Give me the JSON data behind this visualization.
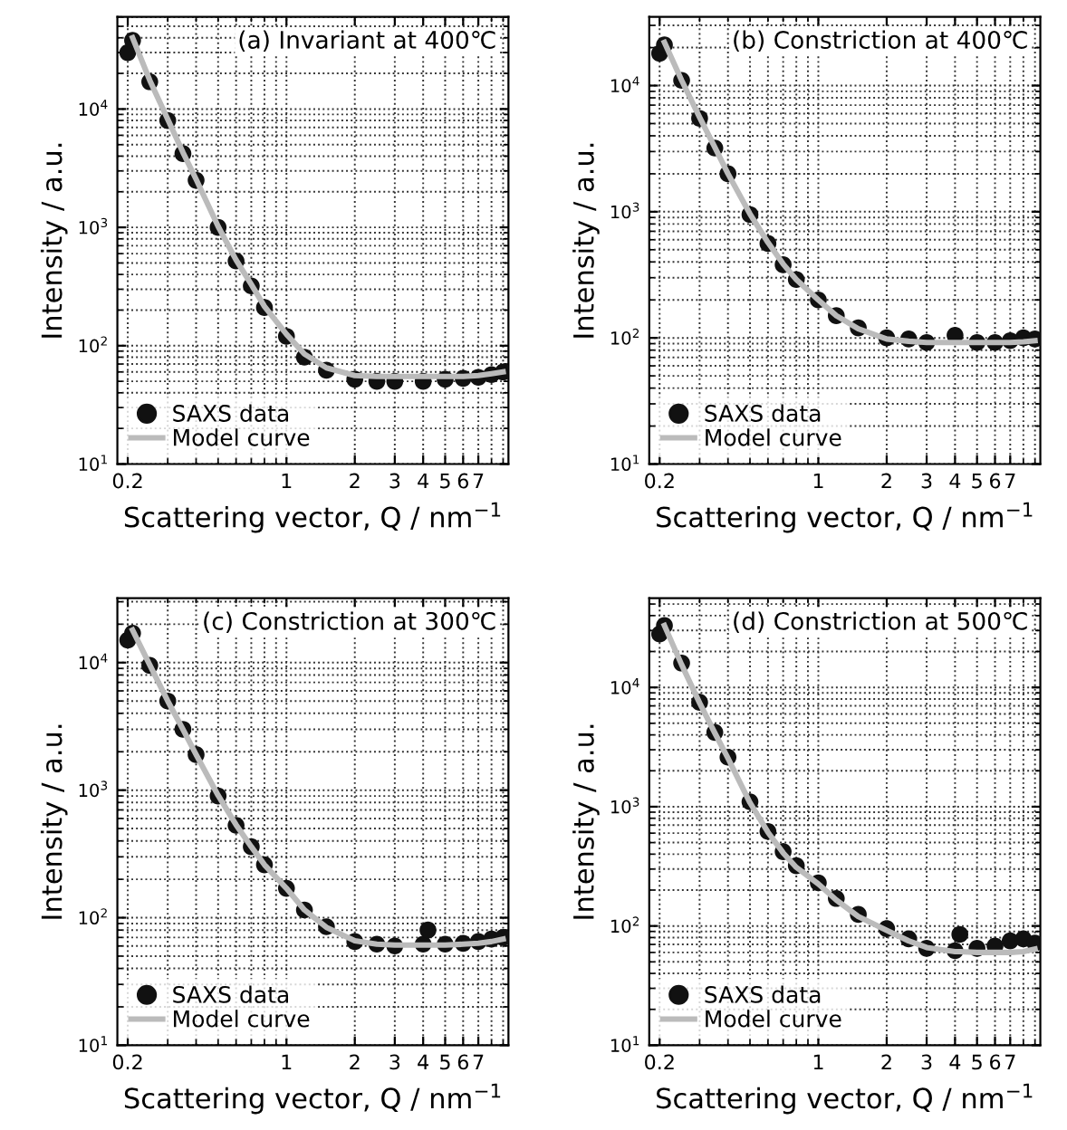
{
  "chart_data": [
    {
      "type": "scatter",
      "title": "(a) Invariant at 400℃",
      "xlabel": "Scattering vector, Q / nm$^{−1}$",
      "ylabel": "Intensity / a.u.",
      "log": "xy",
      "grid": true,
      "legend": "bottom left",
      "xlim": [
        0.18,
        9.5
      ],
      "ylim": [
        10,
        60000
      ],
      "xticks": [
        0.2,
        1,
        2,
        3,
        4,
        5,
        6,
        7
      ],
      "yticks": [
        {
          "value": 10,
          "label": "10$^{1}$"
        },
        {
          "value": 100,
          "label": "10$^{2}$"
        },
        {
          "value": 1000,
          "label": "10$^{3}$"
        },
        {
          "value": 10000,
          "label": "10$^{4}$"
        }
      ],
      "x": [
        0.2,
        0.21,
        0.25,
        0.3,
        0.35,
        0.4,
        0.5,
        0.6,
        0.7,
        0.8,
        1,
        1.2,
        1.5,
        2,
        2.5,
        3,
        4,
        5,
        6,
        7,
        8,
        9
      ],
      "series": [
        {
          "name": "SAXS data",
          "color": "#111111",
          "marker": "circle",
          "values": [
            30000,
            38000,
            17000,
            8000,
            4200,
            2500,
            1000,
            520,
            320,
            210,
            120,
            80,
            62,
            52,
            50,
            50,
            50,
            52,
            53,
            54,
            57,
            60
          ]
        },
        {
          "name": "Model curve",
          "type": "line",
          "color": "#bbbbbb",
          "line_style": "solid",
          "values": [
            null,
            40000,
            17500,
            8200,
            4300,
            2550,
            1020,
            530,
            330,
            215,
            125,
            85,
            65,
            56,
            55,
            55,
            55,
            55,
            55,
            56,
            58,
            60
          ]
        }
      ]
    },
    {
      "type": "scatter",
      "title": "(b) Constriction at 400℃",
      "xlabel": "Scattering vector, Q / nm$^{−1}$",
      "ylabel": "Intensity / a.u.",
      "log": "xy",
      "grid": true,
      "legend": "bottom left",
      "xlim": [
        0.18,
        9.5
      ],
      "ylim": [
        10,
        35000
      ],
      "xticks": [
        0.2,
        1,
        2,
        3,
        4,
        5,
        6,
        7
      ],
      "yticks": [
        {
          "value": 10,
          "label": "10$^{1}$"
        },
        {
          "value": 100,
          "label": "10$^{2}$"
        },
        {
          "value": 1000,
          "label": "10$^{3}$"
        },
        {
          "value": 10000,
          "label": "10$^{4}$"
        }
      ],
      "x": [
        0.2,
        0.21,
        0.25,
        0.3,
        0.35,
        0.4,
        0.5,
        0.6,
        0.7,
        0.8,
        1,
        1.2,
        1.5,
        2,
        2.5,
        3,
        4,
        5,
        6,
        7,
        8,
        9
      ],
      "series": [
        {
          "name": "SAXS data",
          "color": "#111111",
          "marker": "circle",
          "values": [
            18000,
            21000,
            11000,
            5500,
            3200,
            2000,
            950,
            560,
            380,
            290,
            200,
            150,
            120,
            100,
            98,
            92,
            105,
            92,
            92,
            95,
            100,
            98
          ]
        },
        {
          "name": "Model curve",
          "type": "line",
          "color": "#bbbbbb",
          "line_style": "solid",
          "values": [
            null,
            22000,
            11000,
            5600,
            3250,
            2000,
            960,
            570,
            385,
            290,
            200,
            150,
            118,
            98,
            94,
            92,
            92,
            92,
            92,
            92,
            93,
            95
          ]
        }
      ]
    },
    {
      "type": "scatter",
      "title": "(c) Constriction at 300℃",
      "xlabel": "Scattering vector, Q / nm$^{−1}$",
      "ylabel": "Intensity / a.u.",
      "log": "xy",
      "grid": true,
      "legend": "bottom left",
      "xlim": [
        0.18,
        9.5
      ],
      "ylim": [
        10,
        32000
      ],
      "xticks": [
        0.2,
        1,
        2,
        3,
        4,
        5,
        6,
        7
      ],
      "yticks": [
        {
          "value": 10,
          "label": "10$^{1}$"
        },
        {
          "value": 100,
          "label": "10$^{2}$"
        },
        {
          "value": 1000,
          "label": "10$^{3}$"
        },
        {
          "value": 10000,
          "label": "10$^{4}$"
        }
      ],
      "x": [
        0.2,
        0.21,
        0.25,
        0.3,
        0.35,
        0.4,
        0.5,
        0.6,
        0.7,
        0.8,
        1,
        1.2,
        1.5,
        2,
        2.5,
        3,
        4,
        4.2,
        5,
        6,
        7,
        8,
        9
      ],
      "series": [
        {
          "name": "SAXS data",
          "color": "#111111",
          "marker": "circle",
          "values": [
            15000,
            17000,
            9500,
            5000,
            3000,
            1900,
            900,
            530,
            360,
            260,
            170,
            115,
            85,
            65,
            62,
            60,
            62,
            80,
            62,
            63,
            65,
            68,
            70
          ]
        },
        {
          "name": "Model curve",
          "type": "line",
          "color": "#bbbbbb",
          "line_style": "solid",
          "values": [
            null,
            18000,
            9600,
            5000,
            3000,
            1900,
            910,
            535,
            360,
            260,
            170,
            115,
            84,
            66,
            62,
            61,
            61,
            61,
            61,
            62,
            63,
            65,
            68
          ]
        }
      ]
    },
    {
      "type": "scatter",
      "title": "(d) Constriction at 500℃",
      "xlabel": "Scattering vector, Q / nm$^{−1}$",
      "ylabel": "Intensity / a.u.",
      "log": "xy",
      "grid": true,
      "legend": "bottom left",
      "xlim": [
        0.18,
        9.5
      ],
      "ylim": [
        10,
        56000
      ],
      "xticks": [
        0.2,
        1,
        2,
        3,
        4,
        5,
        6,
        7
      ],
      "yticks": [
        {
          "value": 10,
          "label": "10$^{1}$"
        },
        {
          "value": 100,
          "label": "10$^{2}$"
        },
        {
          "value": 1000,
          "label": "10$^{3}$"
        },
        {
          "value": 10000,
          "label": "10$^{4}$"
        }
      ],
      "x": [
        0.2,
        0.21,
        0.25,
        0.3,
        0.35,
        0.4,
        0.5,
        0.6,
        0.7,
        0.8,
        1,
        1.2,
        1.5,
        2,
        2.5,
        3,
        4,
        4.2,
        5,
        6,
        7,
        8,
        9
      ],
      "series": [
        {
          "name": "SAXS data",
          "color": "#111111",
          "marker": "circle",
          "values": [
            28000,
            33000,
            16000,
            7500,
            4200,
            2600,
            1100,
            620,
            420,
            320,
            230,
            170,
            125,
            95,
            78,
            65,
            62,
            85,
            65,
            68,
            75,
            78,
            72
          ]
        },
        {
          "name": "Model curve",
          "type": "line",
          "color": "#bbbbbb",
          "line_style": "solid",
          "values": [
            null,
            33000,
            15500,
            7400,
            4150,
            2550,
            1080,
            610,
            410,
            310,
            225,
            165,
            120,
            92,
            75,
            66,
            61,
            61,
            60,
            60,
            60,
            61,
            64
          ]
        }
      ]
    }
  ]
}
